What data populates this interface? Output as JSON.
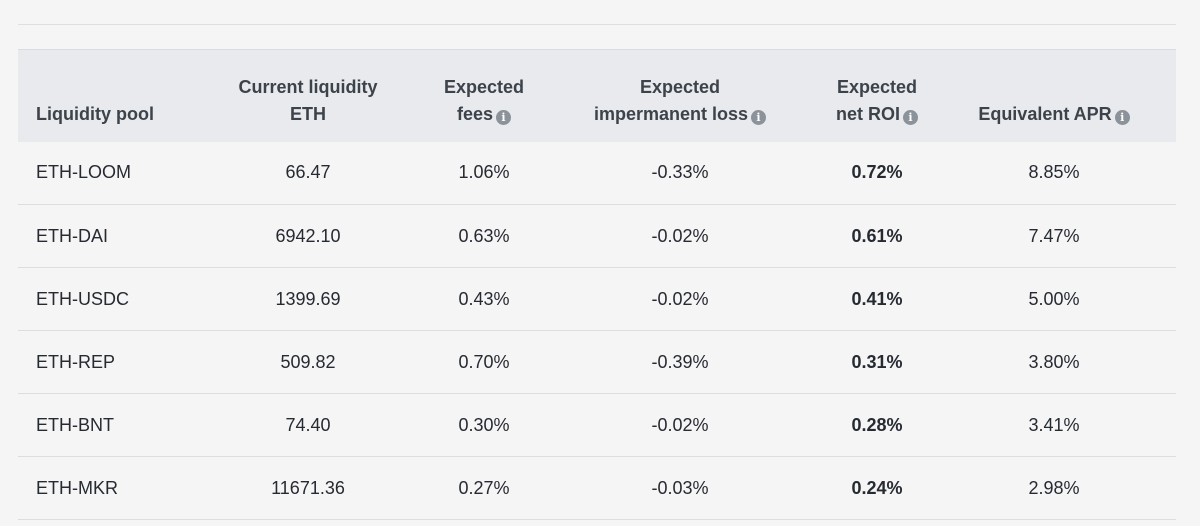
{
  "table": {
    "headers": [
      {
        "line1": "",
        "line2": "Liquidity pool",
        "info": false
      },
      {
        "line1": "Current liquidity",
        "line2": "ETH",
        "info": false
      },
      {
        "line1": "Expected",
        "line2": "fees",
        "info": true
      },
      {
        "line1": "Expected",
        "line2": "impermanent loss",
        "info": true
      },
      {
        "line1": "Expected",
        "line2": "net ROI",
        "info": true
      },
      {
        "line1": "",
        "line2": "Equivalent APR",
        "info": true
      }
    ],
    "info_icon_glyph": "i",
    "info_icon_name": "info-circle-icon",
    "rows": [
      {
        "pool": "ETH-LOOM",
        "liquidity": "66.47",
        "fees": "1.06%",
        "il": "-0.33%",
        "roi": "0.72%",
        "apr": "8.85%"
      },
      {
        "pool": "ETH-DAI",
        "liquidity": "6942.10",
        "fees": "0.63%",
        "il": "-0.02%",
        "roi": "0.61%",
        "apr": "7.47%"
      },
      {
        "pool": "ETH-USDC",
        "liquidity": "1399.69",
        "fees": "0.43%",
        "il": "-0.02%",
        "roi": "0.41%",
        "apr": "5.00%"
      },
      {
        "pool": "ETH-REP",
        "liquidity": "509.82",
        "fees": "0.70%",
        "il": "-0.39%",
        "roi": "0.31%",
        "apr": "3.80%"
      },
      {
        "pool": "ETH-BNT",
        "liquidity": "74.40",
        "fees": "0.30%",
        "il": "-0.02%",
        "roi": "0.28%",
        "apr": "3.41%"
      },
      {
        "pool": "ETH-MKR",
        "liquidity": "11671.36",
        "fees": "0.27%",
        "il": "-0.03%",
        "roi": "0.24%",
        "apr": "2.98%"
      }
    ]
  },
  "colors": {
    "background": "#f5f5f6",
    "header_background": "#e8eaed",
    "text": "#262a31",
    "info_icon": "#8b929a"
  }
}
